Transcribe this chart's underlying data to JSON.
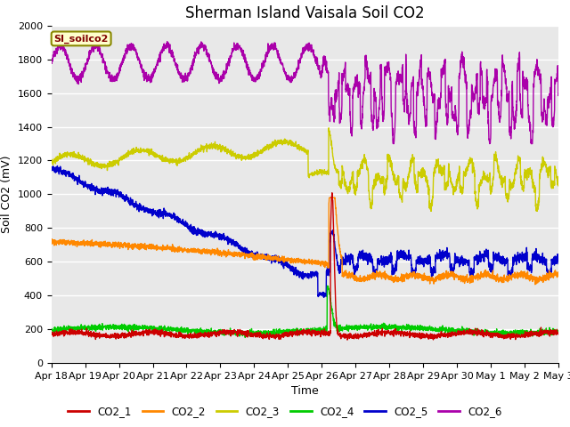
{
  "title": "Sherman Island Vaisala Soil CO2",
  "xlabel": "Time",
  "ylabel": "Soil CO2 (mV)",
  "ylim": [
    0,
    2000
  ],
  "background_color": "#e8e8e8",
  "legend_label": "SI_soilco2",
  "series": {
    "CO2_1": {
      "color": "#cc0000",
      "linewidth": 1.0
    },
    "CO2_2": {
      "color": "#ff8800",
      "linewidth": 1.0
    },
    "CO2_3": {
      "color": "#cccc00",
      "linewidth": 1.0
    },
    "CO2_4": {
      "color": "#00cc00",
      "linewidth": 1.0
    },
    "CO2_5": {
      "color": "#0000cc",
      "linewidth": 1.0
    },
    "CO2_6": {
      "color": "#aa00aa",
      "linewidth": 1.0
    }
  },
  "xtick_labels": [
    "Apr 18",
    "Apr 19",
    "Apr 20",
    "Apr 21",
    "Apr 22",
    "Apr 23",
    "Apr 24",
    "Apr 25",
    "Apr 26",
    "Apr 27",
    "Apr 28",
    "Apr 29",
    "Apr 30",
    "May 1",
    "May 2",
    "May 3"
  ],
  "ytick_labels": [
    "0",
    "200",
    "400",
    "600",
    "800",
    "1000",
    "1200",
    "1400",
    "1600",
    "1800",
    "2000"
  ],
  "ytick_values": [
    0,
    200,
    400,
    600,
    800,
    1000,
    1200,
    1400,
    1600,
    1800,
    2000
  ],
  "grid_color": "#ffffff",
  "title_fontsize": 12,
  "axis_fontsize": 9,
  "tick_fontsize": 8
}
